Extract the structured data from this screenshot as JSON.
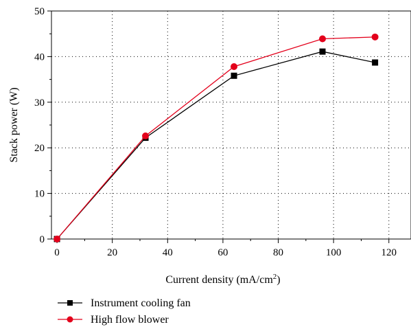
{
  "chart_data": {
    "type": "line",
    "title": "",
    "xlabel": "Current density (mA/cm",
    "xlabel_sup": "2",
    "xlabel_suffix": ")",
    "ylabel": "Stack power (W)",
    "xlim": [
      -2,
      128
    ],
    "ylim": [
      0,
      50
    ],
    "xticks": [
      0,
      20,
      40,
      60,
      80,
      100,
      120
    ],
    "yticks": [
      0,
      10,
      20,
      30,
      40,
      50
    ],
    "grid": true,
    "legend_position": "bottom-left",
    "series": [
      {
        "name": "Instrument cooling fan",
        "color": "#000000",
        "marker": "square",
        "x": [
          0,
          32,
          64,
          96,
          115
        ],
        "y": [
          0,
          22.2,
          35.8,
          41.1,
          38.7
        ]
      },
      {
        "name": "High flow blower",
        "color": "#e3001b",
        "marker": "circle",
        "x": [
          0,
          32,
          64,
          96,
          115
        ],
        "y": [
          0,
          22.6,
          37.8,
          43.9,
          44.3
        ]
      }
    ]
  }
}
